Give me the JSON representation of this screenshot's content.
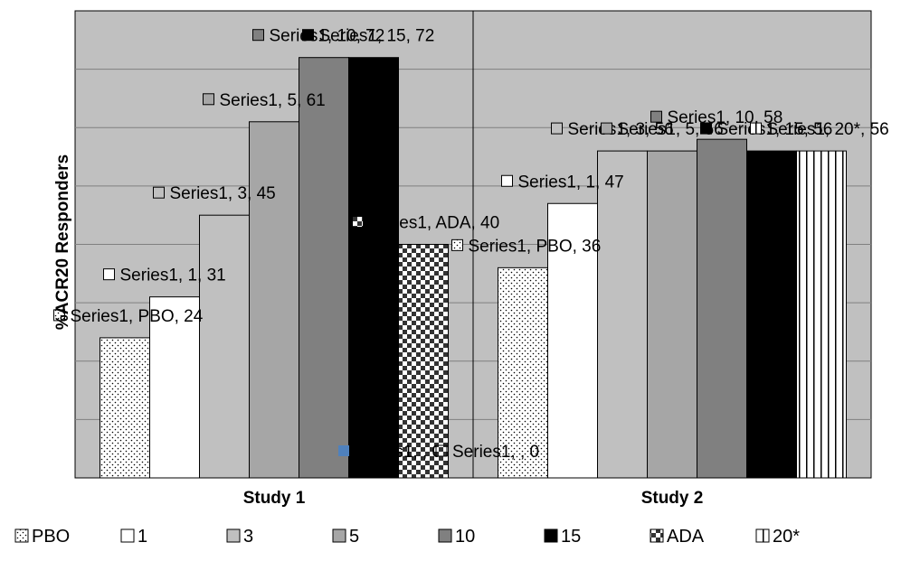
{
  "chart_data": {
    "type": "bar",
    "ylabel": "%ACR20 Responders",
    "ylim": [
      0,
      80
    ],
    "y_gridline_step": 10,
    "grid": true,
    "legend_position": "bottom",
    "categories": [
      "Study 1",
      "Study 2"
    ],
    "series": [
      {
        "name": "PBO",
        "key": "pbo",
        "values": [
          24,
          36
        ]
      },
      {
        "name": "1",
        "key": "d1",
        "values": [
          31,
          47
        ]
      },
      {
        "name": "3",
        "key": "d3",
        "values": [
          45,
          56
        ]
      },
      {
        "name": "5",
        "key": "d5",
        "values": [
          61,
          56
        ]
      },
      {
        "name": "10",
        "key": "d10",
        "values": [
          72,
          58
        ]
      },
      {
        "name": "15",
        "key": "d15",
        "values": [
          72,
          56
        ]
      },
      {
        "name": "ADA",
        "key": "ada",
        "values": [
          40,
          0
        ]
      },
      {
        "name": "20*",
        "key": "d20",
        "values": [
          0,
          56
        ]
      }
    ],
    "data_labels": [
      {
        "text": "Series1, PBO, 24",
        "series": "pbo",
        "category": 0
      },
      {
        "text": "Series1, 1, 31",
        "series": "d1",
        "category": 0
      },
      {
        "text": "Series1, 3, 45",
        "series": "d3",
        "category": 0
      },
      {
        "text": "Series1, 5, 61",
        "series": "d5",
        "category": 0
      },
      {
        "text": "Series1, 10, 72",
        "series": "d10",
        "category": 0
      },
      {
        "text": "Series1, 15, 72",
        "series": "d15",
        "category": 0
      },
      {
        "text": "Series1, ADA, 40",
        "series": "ada",
        "category": 0
      },
      {
        "text": "Series1, , 0",
        "series": "d20",
        "category": 0
      },
      {
        "text": "Series1, PBO, 36",
        "series": "pbo",
        "category": 1
      },
      {
        "text": "Series1, 1, 47",
        "series": "d1",
        "category": 1
      },
      {
        "text": "Series1, 3, 56",
        "series": "d3",
        "category": 1
      },
      {
        "text": "Series1, 5, 56",
        "series": "d5",
        "category": 1
      },
      {
        "text": "Series1, 10, 58",
        "series": "d10",
        "category": 1
      },
      {
        "text": "Series1, 15, 56",
        "series": "d15",
        "category": 1
      },
      {
        "text": "Series1, , 0",
        "series": "ada",
        "category": 1
      },
      {
        "text": "Series1, 20*, 56",
        "series": "d20",
        "category": 1
      }
    ],
    "colors": {
      "plot_area": "#c0c0c0",
      "gridline": "#7f7f7f",
      "bar_outline": "#000000",
      "pbo": "#ffffff",
      "d1": "#ffffff",
      "d3": "#c0c0c0",
      "d5": "#a6a6a6",
      "d10": "#808080",
      "d15": "#000000",
      "ada": "#ffffff",
      "d20": "#ffffff",
      "stray_marker": "#4f81bd"
    }
  }
}
